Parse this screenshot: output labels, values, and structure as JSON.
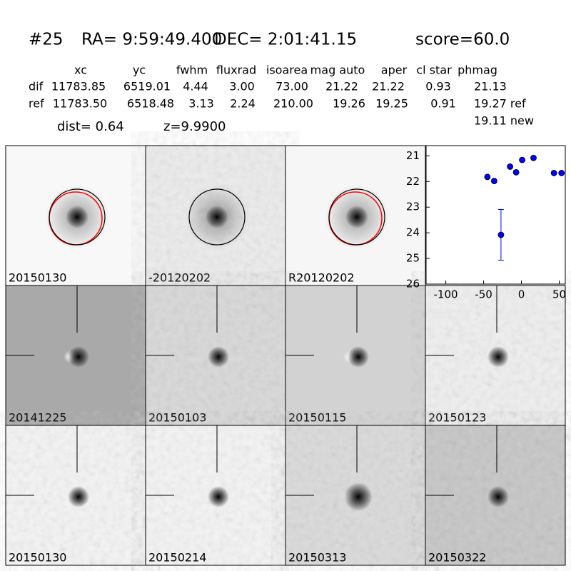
{
  "header": {
    "id": "#25",
    "ra": "RA= 9:59:49.400",
    "dec": "DEC= 2:01:41.15",
    "score": "score=60.0"
  },
  "table": {
    "columns": [
      "xc",
      "yc",
      "fwhm",
      "fluxrad",
      "isoarea",
      "mag auto",
      "aper",
      "cl star",
      "phmag"
    ],
    "rows": [
      [
        "dif",
        "11783.85",
        "6519.01",
        "4.44",
        "3.00",
        "73.00",
        "21.22",
        "21.22",
        "0.93",
        "21.13"
      ],
      [
        "ref",
        "11783.50",
        "6518.48",
        "3.13",
        "2.24",
        "210.00",
        "19.26",
        "19.25",
        "0.91",
        "19.27 ref"
      ]
    ],
    "extra": "19.11 new"
  },
  "dist": "dist=  0.64",
  "z": "z=9.9900",
  "panels": [
    {
      "label": "20150130"
    },
    {
      "label": "-20120202"
    },
    {
      "label": "R20120202"
    },
    {
      "label": "20141225"
    },
    {
      "label": "20150103"
    },
    {
      "label": "20150115"
    },
    {
      "label": "20150123"
    },
    {
      "label": "20150130",
      "label_color": "#ff0000"
    },
    {
      "label": "20150214"
    },
    {
      "label": "20150313"
    },
    {
      "label": "20150322"
    }
  ],
  "chart_data": {
    "type": "scatter",
    "color": "#0000ff",
    "x": [
      -45,
      -36,
      -15,
      -7,
      1,
      16,
      43,
      53
    ],
    "values": [
      21.82,
      21.98,
      21.42,
      21.64,
      21.16,
      21.08,
      21.67,
      21.67
    ],
    "error_points": {
      "x": [
        -27
      ],
      "values": [
        24.08
      ],
      "errors": [
        0.99
      ]
    },
    "xlim": [
      -126,
      58
    ],
    "xticks": [
      -100,
      -50,
      0,
      50
    ],
    "ylim": [
      26,
      20.6
    ],
    "yticks": [
      21,
      22,
      23,
      24,
      25,
      26
    ],
    "y_inverted": true
  }
}
